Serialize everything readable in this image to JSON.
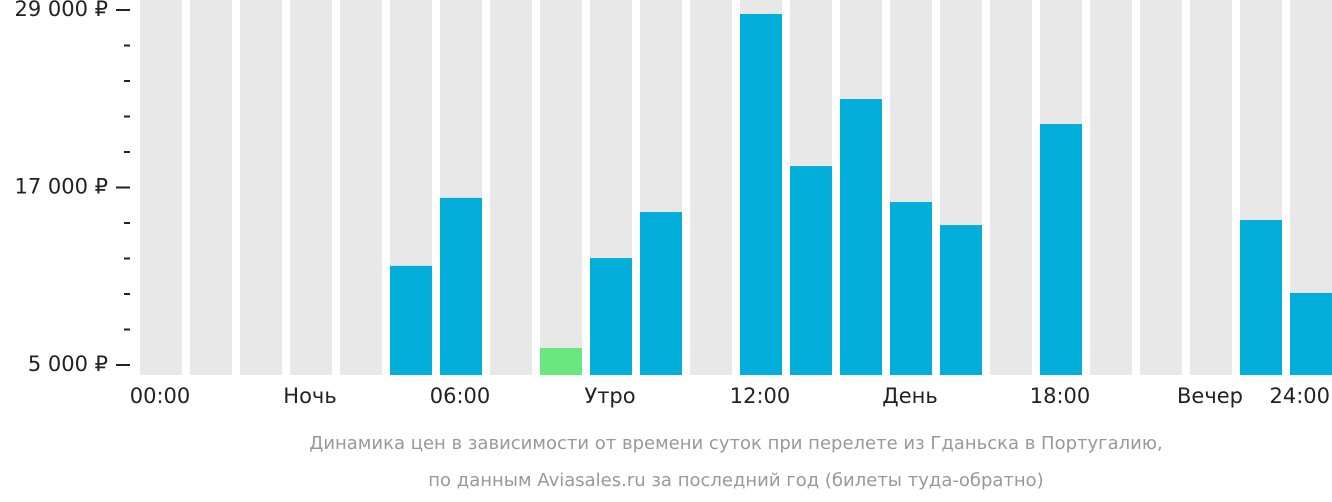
{
  "chart_data": {
    "type": "bar",
    "caption": [
      "Динамика цен в зависимости от времени суток при перелете из Гданьска в Португалию,",
      "по данным Aviasales.ru за последний год (билеты туда-обратно)"
    ],
    "x_labels": [
      "00:00",
      "Ночь",
      "06:00",
      "Утро",
      "12:00",
      "День",
      "18:00",
      "Вечер",
      "24:00"
    ],
    "values": [
      null,
      null,
      null,
      null,
      null,
      11700,
      16300,
      null,
      6150,
      12230,
      15340,
      null,
      28730,
      18450,
      22980,
      16020,
      14460,
      null,
      21290,
      null,
      null,
      null,
      14800,
      9870
    ],
    "colors": [
      null,
      null,
      null,
      null,
      null,
      "#03aedb",
      "#03aedb",
      null,
      "#6be77f",
      "#03aedb",
      "#03aedb",
      null,
      "#03aedb",
      "#03aedb",
      "#03aedb",
      "#03aedb",
      "#03aedb",
      null,
      "#03aedb",
      null,
      null,
      null,
      "#03aedb",
      "#03aedb"
    ],
    "background_color": "#e8e8e8",
    "ylim": [
      5000,
      29000
    ],
    "yticks": [
      {
        "value": 5000,
        "label": "5 000 ₽"
      },
      {
        "value": 17000,
        "label": "17 000 ₽"
      },
      {
        "value": 29000,
        "label": "29 000 ₽"
      }
    ],
    "yminor": [
      7400,
      9800,
      12200,
      14600,
      19400,
      21800,
      24200,
      26600
    ]
  }
}
